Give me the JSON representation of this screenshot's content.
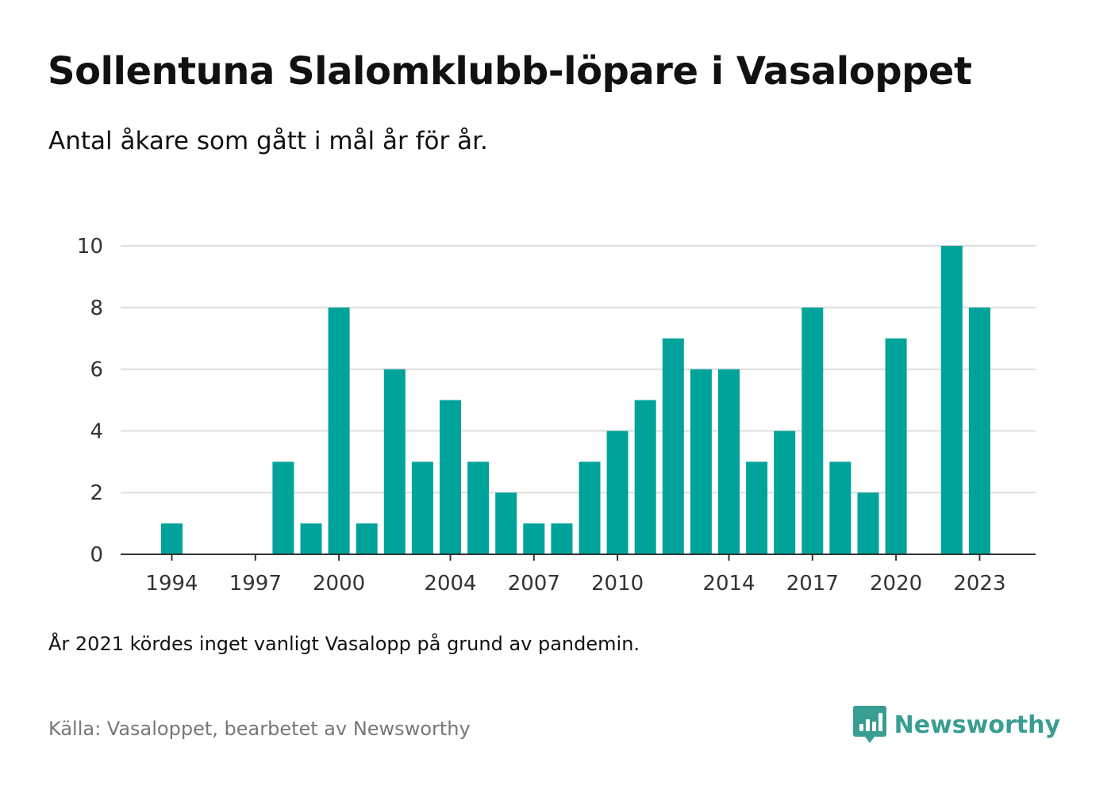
{
  "title": "Sollentuna Slalomklubb-löpare i Vasaloppet",
  "subtitle": "Antal åkare som gått i mål år för år.",
  "note": "År 2021 kördes inget vanligt Vasalopp på grund av pandemin.",
  "source": "Källa: Vasaloppet, bearbetet av Newsworthy",
  "brand": {
    "name": "Newsworthy",
    "icon": "newsworthy-logo-icon",
    "color": "#3a9d91"
  },
  "colors": {
    "bar": "#00a39a",
    "grid": "#dddddd",
    "axis": "#333333"
  },
  "chart_data": {
    "type": "bar",
    "x": [
      1994,
      1995,
      1996,
      1997,
      1998,
      1999,
      2000,
      2001,
      2002,
      2003,
      2004,
      2005,
      2006,
      2007,
      2008,
      2009,
      2010,
      2011,
      2012,
      2013,
      2014,
      2015,
      2016,
      2017,
      2018,
      2019,
      2020,
      2021,
      2022,
      2023
    ],
    "values": [
      1,
      0,
      0,
      0,
      3,
      1,
      8,
      1,
      6,
      3,
      5,
      3,
      2,
      1,
      1,
      3,
      4,
      5,
      7,
      6,
      6,
      3,
      4,
      8,
      3,
      2,
      7,
      0,
      10,
      8
    ],
    "x_tick_labels": [
      "1994",
      "1997",
      "2000",
      "2004",
      "2007",
      "2010",
      "2014",
      "2017",
      "2020",
      "2023"
    ],
    "y_ticks": [
      0,
      2,
      4,
      6,
      8,
      10
    ],
    "ylim": [
      0,
      10
    ],
    "xlabel": "",
    "ylabel": "",
    "grid": true
  }
}
